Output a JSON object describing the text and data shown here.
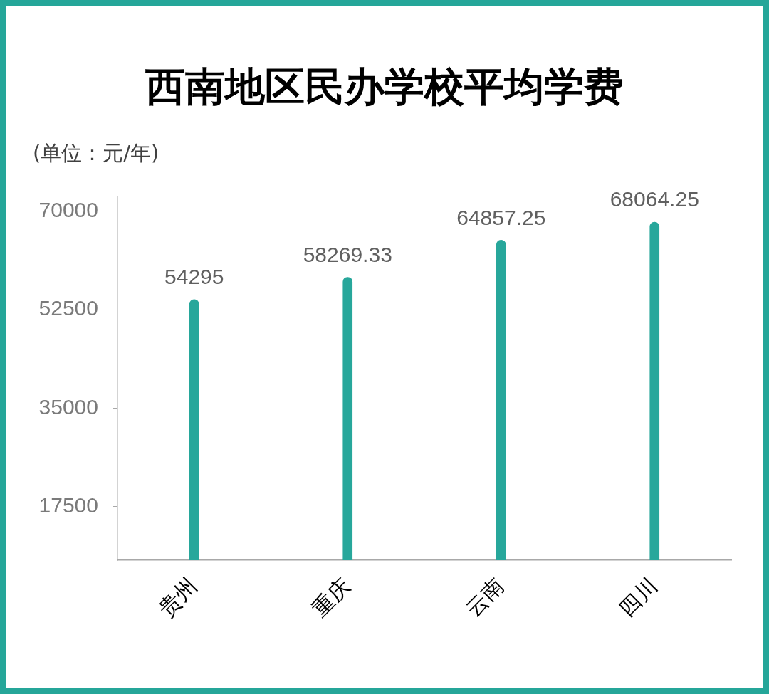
{
  "chart_data": {
    "type": "bar",
    "title": "西南地区民办学校平均学费",
    "ylabel": "(单位：元/年)",
    "categories": [
      "贵州",
      "重庆",
      "云南",
      "四川"
    ],
    "values": [
      54295,
      58269.33,
      64857.25,
      68064.25
    ],
    "color": "#27a79b",
    "ylim": [
      8000,
      72500
    ],
    "yticks": [
      17500,
      35000,
      52500,
      70000
    ],
    "grid": false,
    "data_labels": true
  }
}
